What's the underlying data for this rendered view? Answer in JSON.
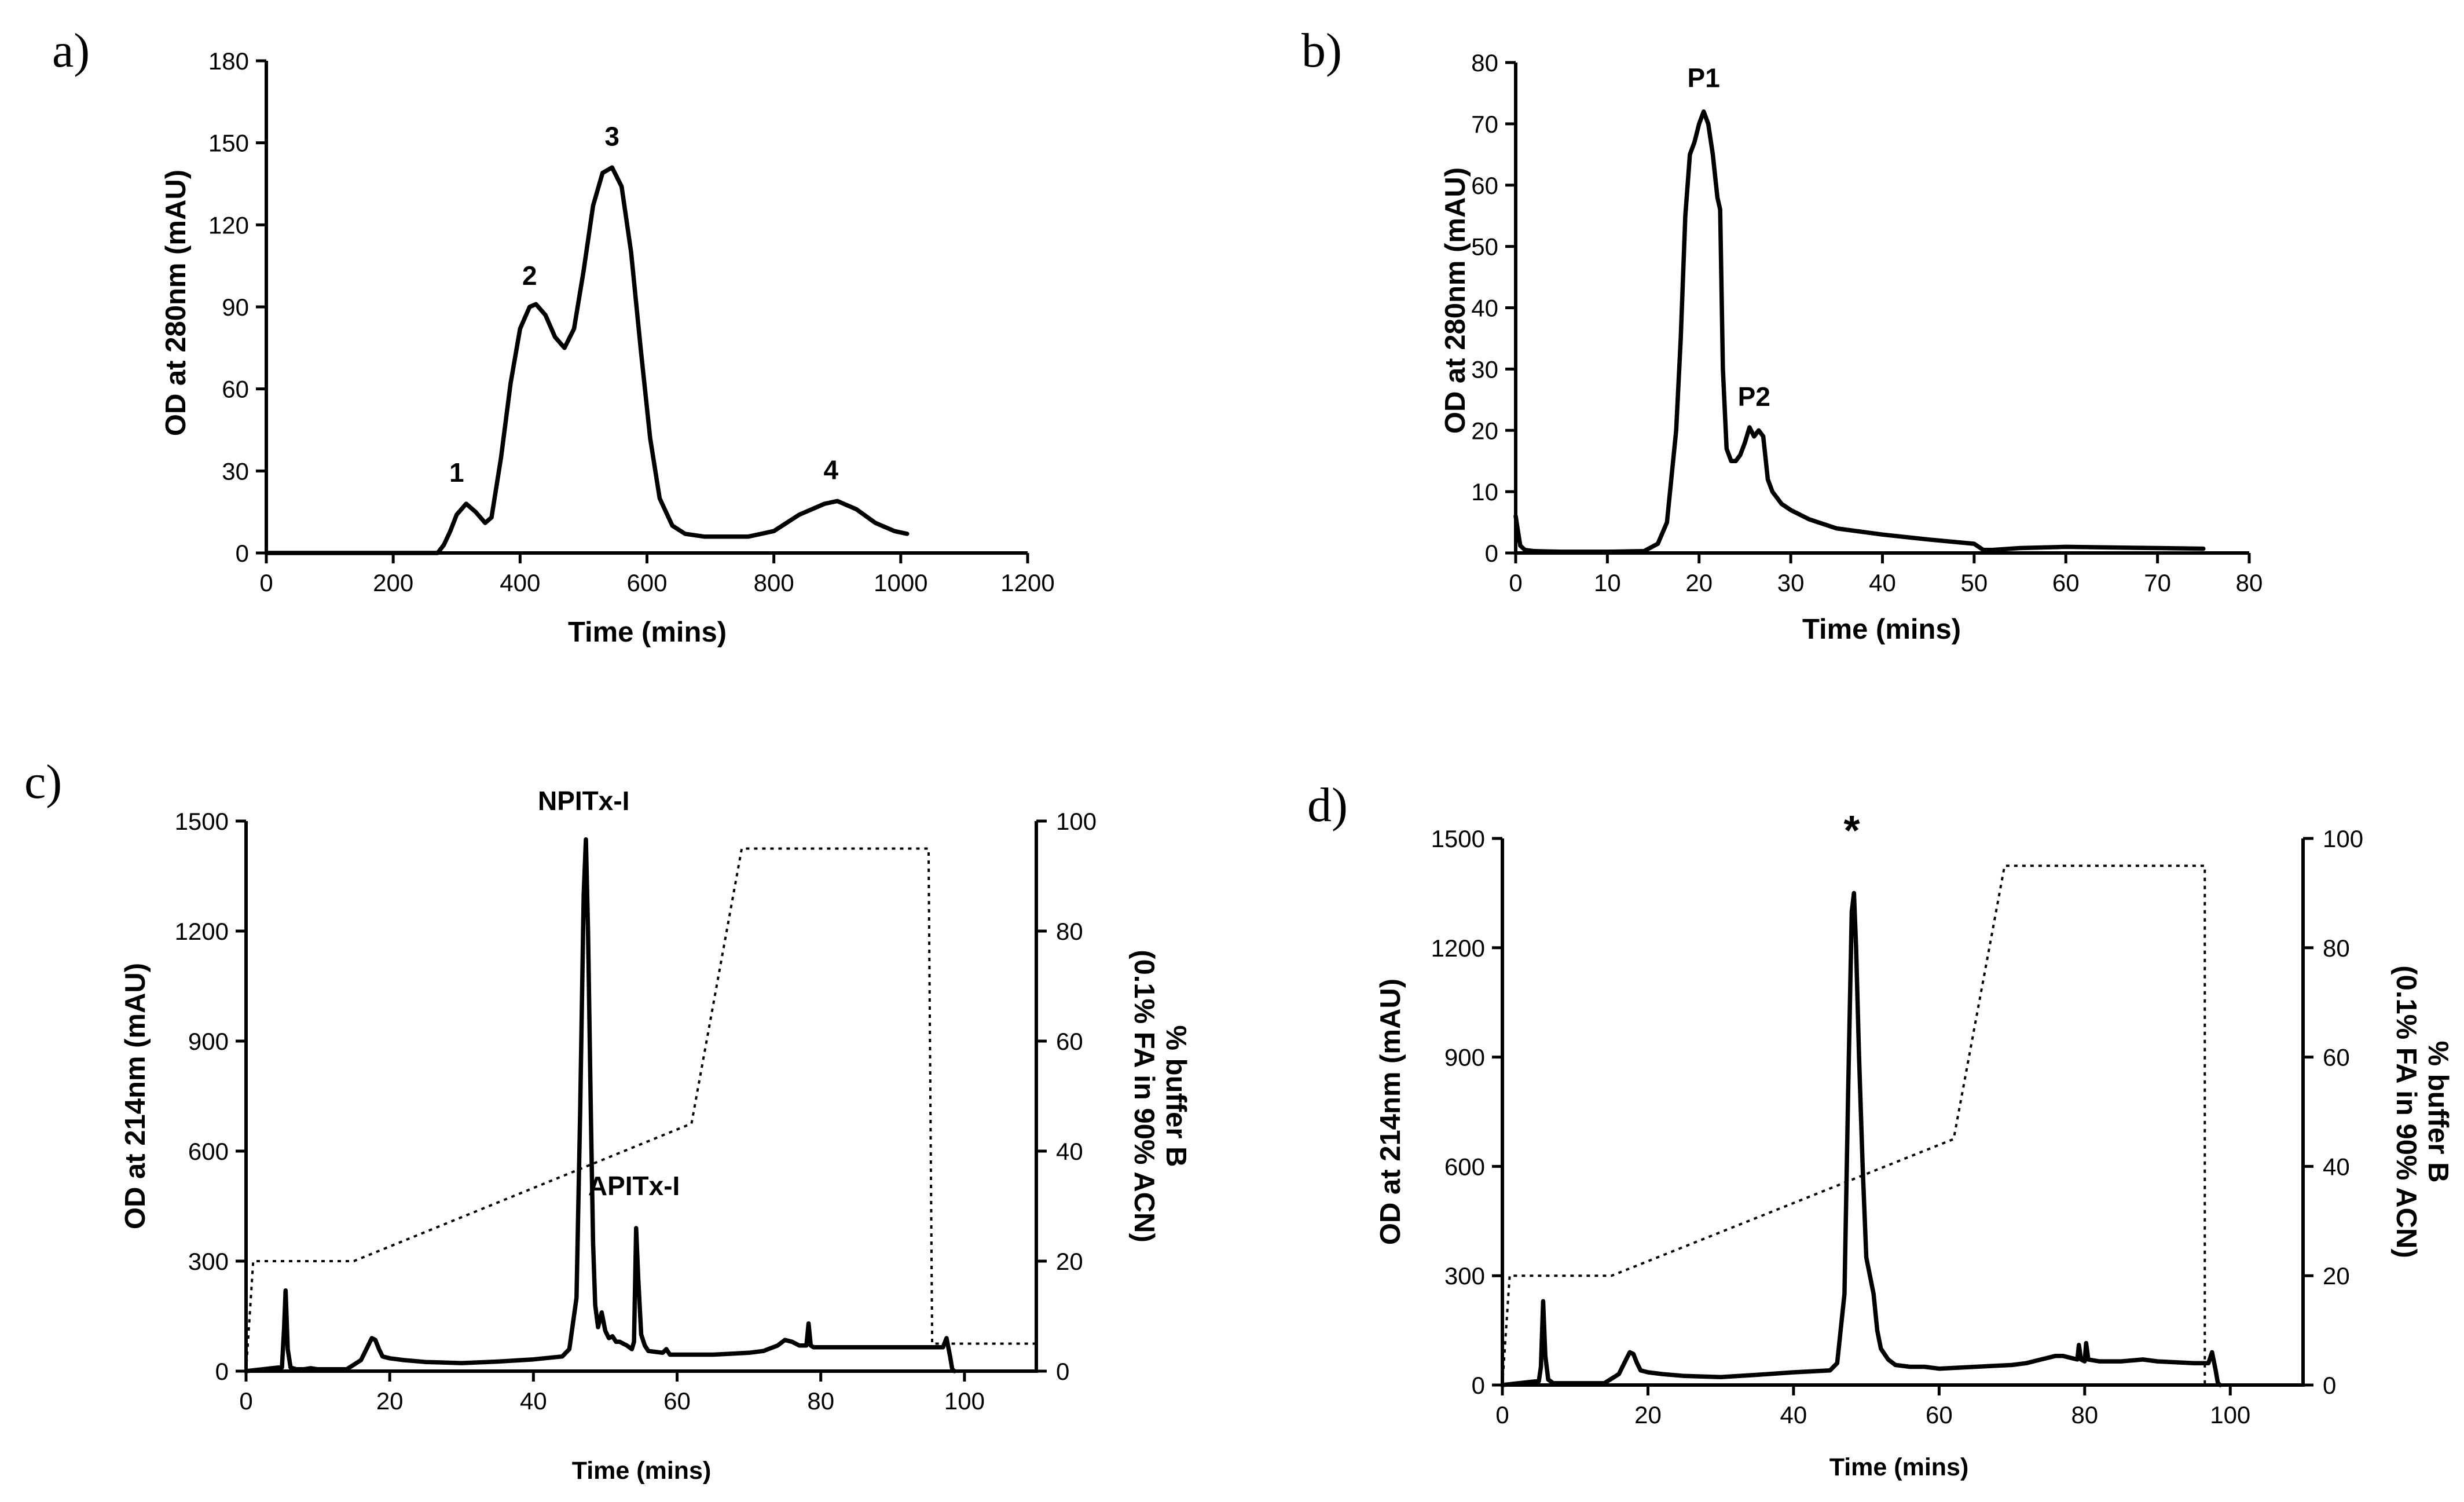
{
  "chart_data": [
    {
      "panel": "a)",
      "type": "line",
      "xlabel": "Time (mins)",
      "ylabel": "OD at 280nm (mAU)",
      "xlim": [
        0,
        1200
      ],
      "ylim": [
        0,
        180
      ],
      "xticks": [
        0,
        200,
        400,
        600,
        800,
        1000,
        1200
      ],
      "yticks": [
        0,
        30,
        60,
        90,
        120,
        150,
        180
      ],
      "series": [
        {
          "name": "OD 280nm",
          "x": [
            0,
            270,
            280,
            290,
            300,
            315,
            330,
            345,
            355,
            370,
            385,
            400,
            415,
            425,
            440,
            455,
            470,
            485,
            500,
            515,
            530,
            545,
            560,
            575,
            590,
            605,
            620,
            640,
            660,
            690,
            720,
            760,
            800,
            840,
            880,
            900,
            930,
            960,
            990,
            1010
          ],
          "y": [
            0,
            0,
            3,
            8,
            14,
            18,
            15,
            11,
            13,
            35,
            62,
            82,
            90,
            91,
            87,
            79,
            75,
            82,
            103,
            127,
            139,
            141,
            134,
            110,
            75,
            42,
            20,
            10,
            7,
            6,
            6,
            6,
            8,
            14,
            18,
            19,
            16,
            11,
            8,
            7
          ]
        }
      ],
      "annotations": [
        {
          "text": "1",
          "x": 300,
          "y": 26
        },
        {
          "text": "2",
          "x": 415,
          "y": 98
        },
        {
          "text": "3",
          "x": 545,
          "y": 149
        },
        {
          "text": "4",
          "x": 890,
          "y": 27
        }
      ]
    },
    {
      "panel": "b)",
      "type": "line",
      "xlabel": "Time (mins)",
      "ylabel": "OD at 280nm (mAU)",
      "xlim": [
        0,
        80
      ],
      "ylim": [
        0,
        80
      ],
      "xticks": [
        0,
        10,
        20,
        30,
        40,
        50,
        60,
        70,
        80
      ],
      "yticks": [
        0,
        10,
        20,
        30,
        40,
        50,
        60,
        70,
        80
      ],
      "series": [
        {
          "name": "OD 280nm",
          "x": [
            0,
            0.2,
            0.5,
            1,
            2,
            5,
            10,
            14,
            15.5,
            16.5,
            17.5,
            18,
            18.5,
            19,
            19.5,
            20,
            20.5,
            21,
            21.5,
            22,
            22.3,
            22.6,
            23,
            23.5,
            24,
            24.5,
            25,
            25.5,
            26,
            26.5,
            27,
            27.5,
            28,
            29,
            30,
            32,
            35,
            40,
            45,
            50,
            51,
            52,
            55,
            60,
            65,
            70,
            75
          ],
          "y": [
            6,
            4,
            1.2,
            0.5,
            0.3,
            0.2,
            0.2,
            0.3,
            1.5,
            5,
            20,
            35,
            55,
            65,
            67,
            70,
            72,
            70,
            65,
            58,
            56,
            30,
            17,
            15,
            15,
            16,
            18,
            20.5,
            19,
            20,
            19,
            12,
            10,
            8,
            7,
            5.5,
            4,
            3,
            2.2,
            1.5,
            0.5,
            0.5,
            0.8,
            1,
            0.9,
            0.8,
            0.7
          ]
        }
      ],
      "annotations": [
        {
          "text": "P1",
          "x": 20.5,
          "y": 76
        },
        {
          "text": "P2",
          "x": 26,
          "y": 24
        }
      ]
    },
    {
      "panel": "c)",
      "type": "line",
      "xlabel": "Time (mins)",
      "ylabel": "OD at 214nm (mAU)",
      "y2label": [
        "% buffer B",
        "(0.1% FA in 90% ACN)"
      ],
      "xlim": [
        0,
        110
      ],
      "ylim": [
        0,
        1500
      ],
      "y2lim": [
        0,
        100
      ],
      "xticks": [
        0,
        20,
        40,
        60,
        80,
        100
      ],
      "yticks": [
        0,
        300,
        600,
        900,
        1200,
        1500
      ],
      "y2ticks": [
        0,
        20,
        40,
        60,
        80,
        100
      ],
      "series": [
        {
          "name": "OD 214nm",
          "axis": "left",
          "x": [
            0,
            4.5,
            5,
            5.3,
            5.5,
            5.8,
            6.2,
            7,
            8,
            9,
            10,
            12,
            14,
            16,
            17,
            17.5,
            18,
            18.5,
            19,
            20,
            22,
            25,
            30,
            35,
            40,
            44,
            45,
            46,
            46.5,
            47,
            47.3,
            47.6,
            48,
            48.3,
            48.6,
            49,
            49.5,
            50,
            50.5,
            51,
            51.5,
            52,
            53,
            53.7,
            54,
            54.3,
            54.6,
            55,
            55.5,
            56,
            58,
            58.5,
            59,
            60,
            65,
            70,
            72,
            74,
            75,
            76,
            77,
            78,
            78.3,
            78.6,
            79,
            80,
            85,
            90,
            95,
            97,
            97.5,
            98,
            98.3,
            98.6
          ],
          "y": [
            0,
            10,
            10,
            120,
            220,
            60,
            10,
            5,
            5,
            8,
            5,
            5,
            5,
            30,
            70,
            90,
            85,
            60,
            40,
            35,
            30,
            25,
            22,
            26,
            32,
            40,
            60,
            200,
            700,
            1300,
            1450,
            1200,
            700,
            350,
            180,
            120,
            160,
            110,
            90,
            95,
            80,
            80,
            70,
            60,
            80,
            390,
            250,
            100,
            70,
            55,
            50,
            60,
            45,
            45,
            45,
            50,
            55,
            70,
            85,
            80,
            70,
            70,
            130,
            70,
            65,
            65,
            65,
            65,
            65,
            65,
            90,
            40,
            5,
            0
          ]
        },
        {
          "name": "% buffer B",
          "axis": "right",
          "x": [
            0,
            1,
            15,
            62,
            69,
            95,
            95.5,
            97,
            110
          ],
          "y": [
            0,
            20,
            20,
            45,
            95,
            95,
            5,
            5,
            5
          ]
        }
      ],
      "annotations": [
        {
          "text": "NPITx-I",
          "x": 47,
          "y": 1530
        },
        {
          "text": "APITx-I",
          "x": 54,
          "y": 480
        }
      ]
    },
    {
      "panel": "d)",
      "type": "line",
      "xlabel": "Time (mins)",
      "ylabel": "OD at 214nm (mAU)",
      "y2label": [
        "% buffer B",
        "(0.1% FA in 90% ACN)"
      ],
      "xlim": [
        0,
        110
      ],
      "ylim": [
        0,
        1500
      ],
      "y2lim": [
        0,
        100
      ],
      "xticks": [
        0,
        20,
        40,
        60,
        80,
        100
      ],
      "yticks": [
        0,
        300,
        600,
        900,
        1200,
        1500
      ],
      "y2ticks": [
        0,
        20,
        40,
        60,
        80,
        100
      ],
      "series": [
        {
          "name": "OD 214nm",
          "axis": "left",
          "x": [
            0,
            4.5,
            5,
            5.3,
            5.6,
            5.9,
            6.3,
            7,
            8,
            10,
            12,
            14,
            16,
            17,
            17.5,
            18,
            18.5,
            19,
            20,
            22,
            25,
            30,
            35,
            40,
            45,
            46,
            47,
            47.5,
            48,
            48.3,
            48.6,
            49,
            49.5,
            50,
            50.5,
            51,
            51.5,
            52,
            53,
            54,
            56,
            58,
            60,
            65,
            70,
            72,
            74,
            75,
            76,
            77,
            78,
            79,
            79.2,
            79.5,
            80,
            80.2,
            80.5,
            82,
            85,
            88,
            90,
            95,
            97,
            97.5,
            98,
            98.3,
            98.6
          ],
          "y": [
            0,
            10,
            10,
            50,
            230,
            80,
            15,
            5,
            5,
            5,
            5,
            5,
            30,
            70,
            90,
            85,
            60,
            40,
            35,
            30,
            25,
            22,
            28,
            35,
            40,
            60,
            250,
            800,
            1300,
            1350,
            1200,
            900,
            600,
            350,
            300,
            250,
            150,
            100,
            70,
            55,
            50,
            50,
            45,
            50,
            55,
            60,
            70,
            75,
            80,
            80,
            75,
            70,
            110,
            70,
            65,
            115,
            70,
            65,
            65,
            70,
            65,
            60,
            60,
            90,
            40,
            5,
            0
          ]
        },
        {
          "name": "% buffer B",
          "axis": "right",
          "x": [
            0,
            1,
            15,
            62,
            69,
            96.5,
            96.5
          ],
          "y": [
            0,
            20,
            20,
            45,
            95,
            95,
            0
          ]
        }
      ],
      "annotations": [
        {
          "text": "*",
          "x": 48,
          "y": 1530
        }
      ]
    }
  ]
}
